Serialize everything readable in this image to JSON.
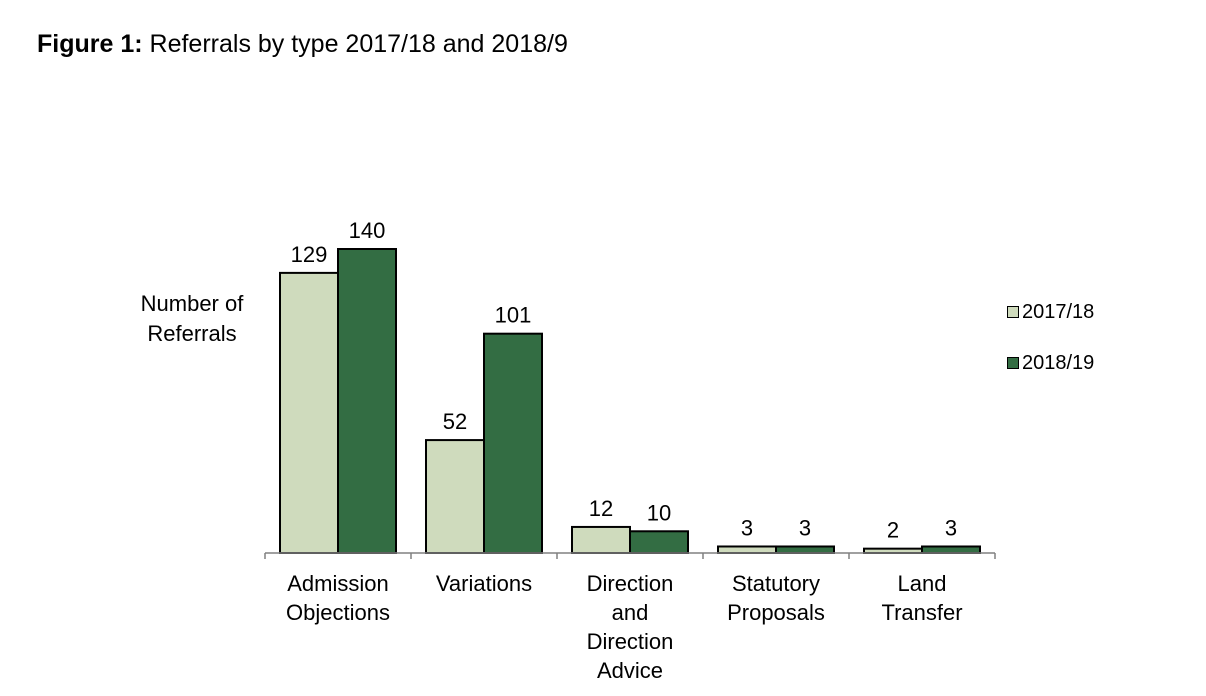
{
  "figure": {
    "label": "Figure 1:",
    "caption": " Referrals by type 2017/18 and 2018/9"
  },
  "colors": {
    "series_2017": "#cfdbbd",
    "series_2018": "#336d43",
    "axis": "#808080",
    "bar_border": "#000000"
  },
  "chart_data": {
    "type": "bar",
    "categories": [
      [
        "Admission",
        "Objections"
      ],
      [
        "Variations"
      ],
      [
        "Direction",
        "and",
        "Direction",
        "Advice"
      ],
      [
        "Statutory",
        "Proposals"
      ],
      [
        "Land",
        "Transfer"
      ]
    ],
    "series": [
      {
        "name": "2017/18",
        "values": [
          129,
          52,
          12,
          3,
          2
        ]
      },
      {
        "name": "2018/19",
        "values": [
          140,
          101,
          10,
          3,
          3
        ]
      }
    ],
    "ylabel": [
      "Number of",
      "Referrals"
    ],
    "xlabel": "",
    "ylim": [
      0,
      140
    ],
    "grid": false,
    "data_labels": true,
    "legend_position": "right"
  }
}
